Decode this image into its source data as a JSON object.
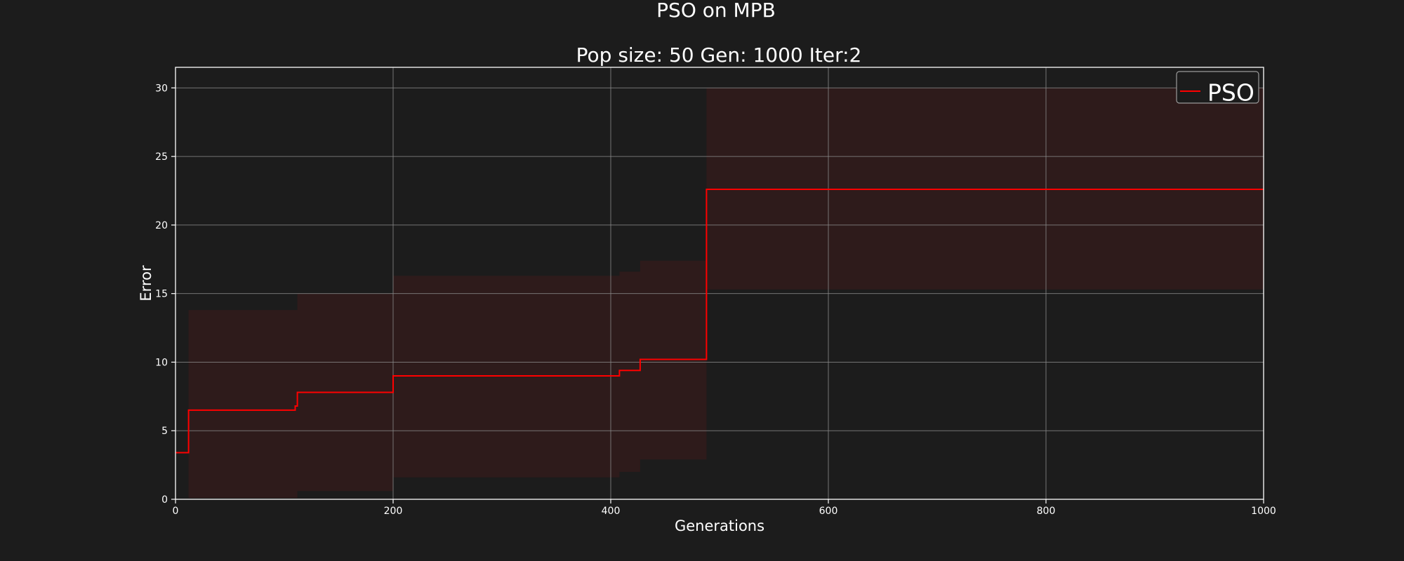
{
  "chart_data": {
    "type": "line",
    "title": "PSO on MPB",
    "subtitle": "Pop size: 50  Gen: 1000  Iter:2",
    "xlabel": "Generations",
    "ylabel": "Error",
    "xlim": [
      0,
      1000
    ],
    "ylim": [
      0,
      31.5
    ],
    "xticks": [
      0,
      200,
      400,
      600,
      800,
      1000
    ],
    "yticks": [
      0,
      5,
      10,
      15,
      20,
      25,
      30
    ],
    "grid": true,
    "legend": {
      "position": "top-right",
      "entries": [
        "PSO"
      ]
    },
    "colors": {
      "background": "#1c1c1c",
      "line": "#ff0000",
      "band": "#3a1a1a",
      "grid": "#8a8a8a",
      "axes": "#ffffff"
    },
    "series": [
      {
        "name": "PSO",
        "step_x": [
          0,
          12,
          110,
          112,
          200,
          408,
          427,
          488,
          1000
        ],
        "step_mean": [
          3.4,
          6.5,
          6.8,
          7.8,
          9.0,
          9.4,
          10.2,
          22.6,
          22.6
        ],
        "step_upper": [
          3.4,
          13.8,
          13.8,
          15.0,
          16.3,
          16.6,
          17.4,
          30.0,
          30.0
        ],
        "step_lower": [
          3.4,
          0.1,
          0.1,
          0.6,
          1.6,
          2.0,
          2.9,
          15.3,
          15.3
        ]
      }
    ]
  }
}
